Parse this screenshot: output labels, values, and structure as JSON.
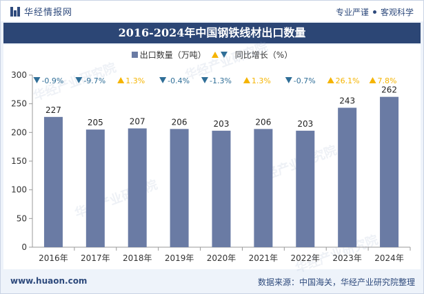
{
  "header": {
    "brand_name": "华经情报网",
    "slogan_left": "专业严谨",
    "slogan_right": "客观科学"
  },
  "title": "2016-2024年中国钢铁线材出口数量",
  "legend": {
    "bar_label": "出口数量（万吨）",
    "growth_label": "同比增长（%）"
  },
  "footer": {
    "site": "www.huaon.com",
    "source": "数据来源：中国海关，华经产业研究院整理"
  },
  "watermark": "华经产业研究院",
  "colors": {
    "bar": "#6a7ba4",
    "up": "#f5b400",
    "down": "#2f6e97",
    "title_bg": "#2c4675"
  },
  "chart_data": {
    "type": "bar",
    "categories": [
      "2016年",
      "2017年",
      "2018年",
      "2019年",
      "2020年",
      "2021年",
      "2022年",
      "2023年",
      "2024年"
    ],
    "series": [
      {
        "name": "出口数量（万吨）",
        "values": [
          227,
          205,
          207,
          206,
          203,
          206,
          203,
          243,
          262
        ]
      }
    ],
    "growth": {
      "name": "同比增长（%）",
      "values": [
        -0.9,
        -9.7,
        1.3,
        -0.4,
        -1.3,
        1.3,
        -0.7,
        26.1,
        7.8
      ],
      "labels": [
        "-0.9%",
        "-9.7%",
        "1.3%",
        "-0.4%",
        "-1.3%",
        "1.3%",
        "-0.7%",
        "26.1%",
        "7.8%"
      ]
    },
    "ylim": [
      0,
      300
    ],
    "yticks": [
      0,
      50,
      100,
      150,
      200,
      250,
      300
    ],
    "legend_position": "top"
  }
}
